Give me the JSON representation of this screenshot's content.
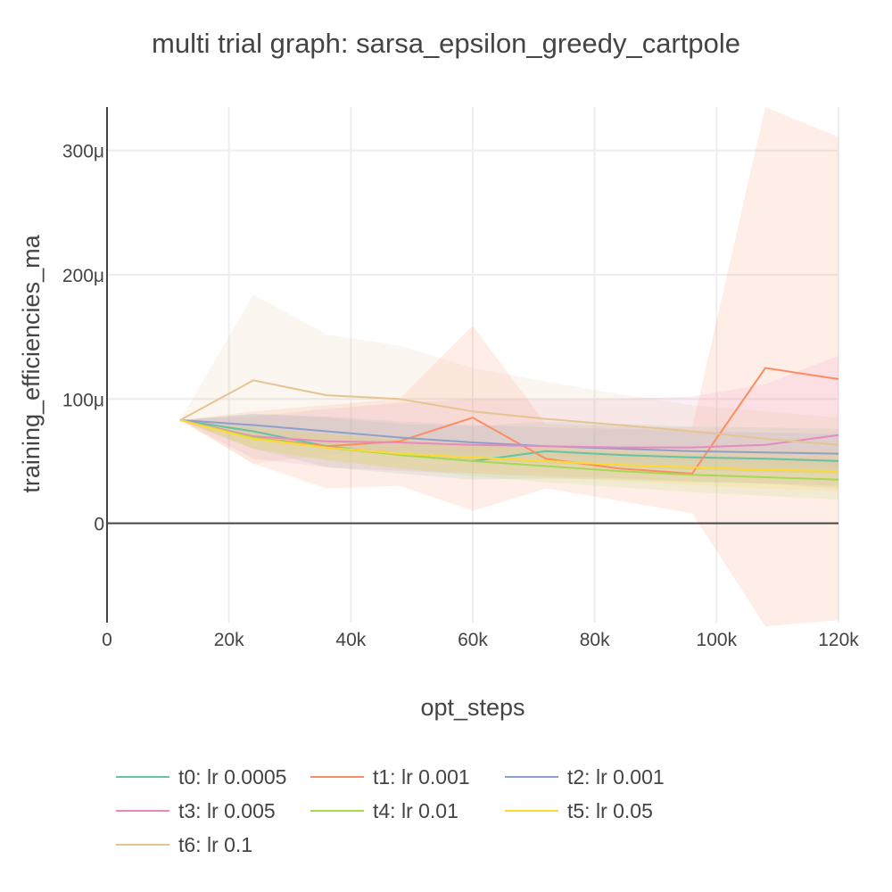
{
  "chart_data": {
    "type": "line",
    "title": "multi trial graph: sarsa_epsilon_greedy_cartpole",
    "xlabel": "opt_steps",
    "ylabel": "training_efficiencies_ma",
    "xlim": [
      0,
      120000
    ],
    "ylim": [
      -8e-05,
      0.000335
    ],
    "x_ticks": [
      {
        "value": 0,
        "label": "0"
      },
      {
        "value": 20000,
        "label": "20k"
      },
      {
        "value": 40000,
        "label": "40k"
      },
      {
        "value": 60000,
        "label": "60k"
      },
      {
        "value": 80000,
        "label": "80k"
      },
      {
        "value": 100000,
        "label": "100k"
      },
      {
        "value": 120000,
        "label": "120k"
      }
    ],
    "y_ticks": [
      {
        "value": 0,
        "label": "0"
      },
      {
        "value": 0.0001,
        "label": "100μ"
      },
      {
        "value": 0.0002,
        "label": "200μ"
      },
      {
        "value": 0.0003,
        "label": "300μ"
      }
    ],
    "grid": true,
    "legend_position": "bottom",
    "x": [
      12000,
      24000,
      36000,
      48000,
      60000,
      72000,
      84000,
      96000,
      108000,
      120000
    ],
    "series": [
      {
        "name": "t0: lr 0.0005",
        "color": "#66c2a5",
        "values": [
          8.3e-05,
          7.4e-05,
          6.2e-05,
          5.5e-05,
          5e-05,
          5.8e-05,
          5.5e-05,
          5.3e-05,
          5.2e-05,
          5e-05
        ],
        "upper": [
          8.3e-05,
          8.8e-05,
          8.5e-05,
          8e-05,
          7.8e-05,
          8.2e-05,
          8e-05,
          7.8e-05,
          7.7e-05,
          7.6e-05
        ],
        "lower": [
          8.3e-05,
          6e-05,
          4.5e-05,
          4e-05,
          3.5e-05,
          3.6e-05,
          3.5e-05,
          3.3e-05,
          3.2e-05,
          3e-05
        ]
      },
      {
        "name": "t1: lr 0.001",
        "color": "#fc8d62",
        "values": [
          8.3e-05,
          6.9e-05,
          6.2e-05,
          6.6e-05,
          8.5e-05,
          5.2e-05,
          4.4e-05,
          4e-05,
          0.000125,
          0.000116
        ],
        "upper": [
          8.3e-05,
          9e-05,
          9.5e-05,
          0.0001,
          0.000159,
          8e-05,
          7.8e-05,
          7.7e-05,
          0.000335,
          0.000311
        ],
        "lower": [
          8.3e-05,
          4.8e-05,
          2.8e-05,
          3e-05,
          1e-05,
          2.8e-05,
          1.8e-05,
          8e-06,
          -8.3e-05,
          -7.8e-05
        ]
      },
      {
        "name": "t2: lr 0.001",
        "color": "#8da0cb",
        "values": [
          8.3e-05,
          7.9e-05,
          7.4e-05,
          6.9e-05,
          6.5e-05,
          6.2e-05,
          6e-05,
          5.8e-05,
          5.7e-05,
          5.6e-05
        ],
        "upper": [
          8.3e-05,
          8.8e-05,
          8.6e-05,
          8.2e-05,
          7.9e-05,
          7.7e-05,
          7.6e-05,
          7.4e-05,
          7.3e-05,
          7.2e-05
        ],
        "lower": [
          8.3e-05,
          7e-05,
          6.2e-05,
          5.6e-05,
          5.1e-05,
          4.8e-05,
          4.5e-05,
          4.3e-05,
          4.1e-05,
          4e-05
        ]
      },
      {
        "name": "t3: lr 0.005",
        "color": "#e78ac3",
        "values": [
          8.3e-05,
          7e-05,
          6.6e-05,
          6.5e-05,
          6.3e-05,
          6.2e-05,
          6.1e-05,
          6.1e-05,
          6.3e-05,
          7.1e-05
        ],
        "upper": [
          8.3e-05,
          8.6e-05,
          9.2e-05,
          9.7e-05,
          0.0001,
          0.0001,
          0.0001,
          0.000102,
          0.000112,
          0.000135
        ],
        "lower": [
          8.3e-05,
          5.2e-05,
          4.5e-05,
          4.2e-05,
          4e-05,
          3.8e-05,
          3.6e-05,
          3.4e-05,
          3.2e-05,
          2.8e-05
        ]
      },
      {
        "name": "t4: lr 0.01",
        "color": "#a6d854",
        "values": [
          8.3e-05,
          6.9e-05,
          6.1e-05,
          5.5e-05,
          5e-05,
          4.6e-05,
          4.2e-05,
          3.9e-05,
          3.7e-05,
          3.5e-05
        ],
        "upper": [
          8.3e-05,
          7.8e-05,
          7.2e-05,
          6.7e-05,
          6.3e-05,
          6e-05,
          5.7e-05,
          5.5e-05,
          5.3e-05,
          5.2e-05
        ],
        "lower": [
          8.3e-05,
          6e-05,
          5.1e-05,
          4.4e-05,
          3.8e-05,
          3.3e-05,
          2.9e-05,
          2.5e-05,
          2.2e-05,
          1.9e-05
        ]
      },
      {
        "name": "t5: lr 0.05",
        "color": "#ffd92f",
        "values": [
          8.3e-05,
          6.8e-05,
          6.1e-05,
          5.6e-05,
          5.3e-05,
          5e-05,
          4.7e-05,
          4.5e-05,
          4.3e-05,
          4.2e-05
        ],
        "upper": [
          8.3e-05,
          7.6e-05,
          7.2e-05,
          6.8e-05,
          6.5e-05,
          6.3e-05,
          6.1e-05,
          6e-05,
          5.9e-05,
          5.8e-05
        ],
        "lower": [
          8.3e-05,
          6e-05,
          5e-05,
          4.4e-05,
          4e-05,
          3.7e-05,
          3.4e-05,
          3.1e-05,
          2.8e-05,
          2.6e-05
        ]
      },
      {
        "name": "t6: lr 0.1",
        "color": "#e5c494",
        "values": [
          8.3e-05,
          0.000115,
          0.000103,
          0.0001,
          9e-05,
          8.4e-05,
          7.9e-05,
          7.4e-05,
          6.8e-05,
          6.3e-05
        ],
        "upper": [
          8.3e-05,
          0.000184,
          0.000152,
          0.000143,
          0.000125,
          0.000114,
          0.000104,
          9.5e-05,
          9e-05,
          8.5e-05
        ],
        "lower": [
          8.3e-05,
          4.8e-05,
          5.5e-05,
          5.8e-05,
          5.6e-05,
          5.4e-05,
          5.2e-05,
          5e-05,
          4.8e-05,
          4.6e-05
        ]
      }
    ]
  }
}
